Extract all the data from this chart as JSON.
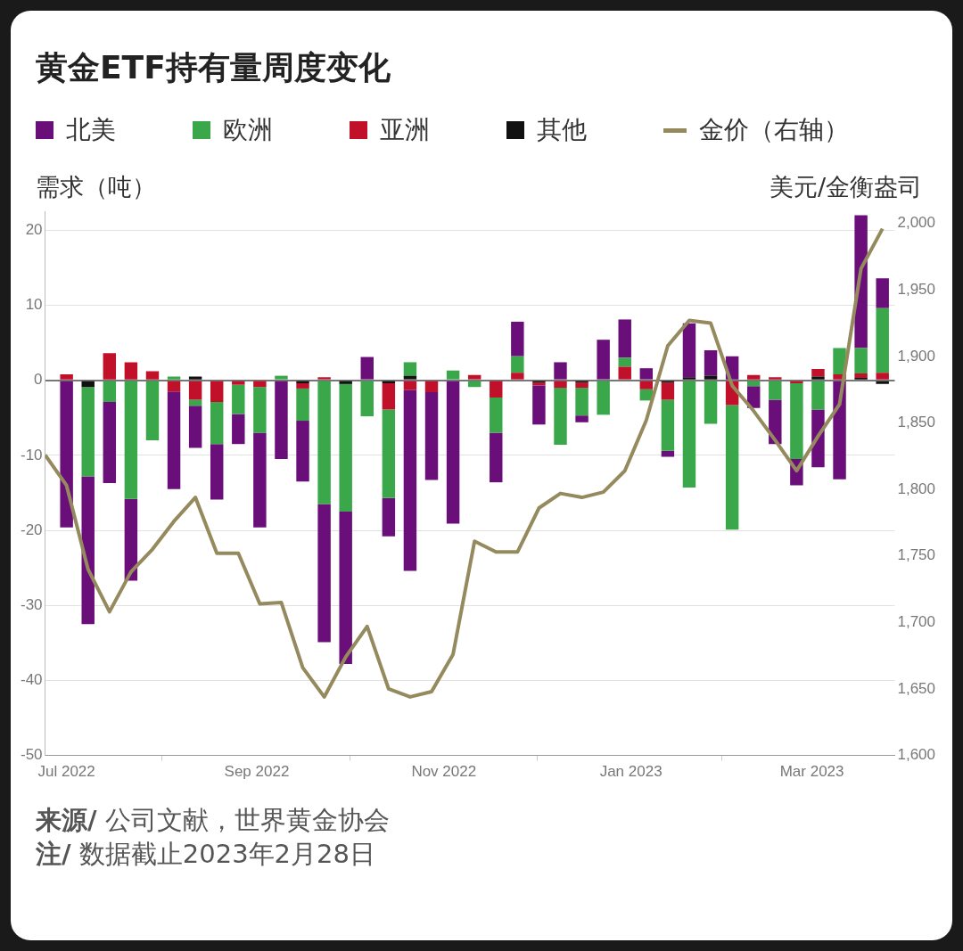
{
  "chart_data": {
    "type": "bar",
    "title": "黄金ETF持有量周度变化",
    "ylabel": "需求（吨）",
    "y2label": "美元/金衡盎司",
    "stacked": true,
    "grid": "y",
    "legend": "top",
    "x": [
      "2022-07-01",
      "2022-07-08",
      "2022-07-15",
      "2022-07-22",
      "2022-07-29",
      "2022-08-05",
      "2022-08-12",
      "2022-08-19",
      "2022-08-26",
      "2022-09-02",
      "2022-09-09",
      "2022-09-16",
      "2022-09-23",
      "2022-09-30",
      "2022-10-07",
      "2022-10-14",
      "2022-10-21",
      "2022-10-28",
      "2022-11-04",
      "2022-11-11",
      "2022-11-18",
      "2022-11-25",
      "2022-12-02",
      "2022-12-09",
      "2022-12-16",
      "2022-12-23",
      "2022-12-30",
      "2023-01-06",
      "2023-01-13",
      "2023-01-20",
      "2023-01-27",
      "2023-02-03",
      "2023-02-10",
      "2023-02-17",
      "2023-02-24",
      "2023-03-03",
      "2023-03-10",
      "2023-03-17",
      "2023-03-24"
    ],
    "xlim": [
      "2022-06-24",
      "2023-03-28"
    ],
    "xticks": [
      {
        "value": "2022-07-01",
        "label": "Jul 2022"
      },
      {
        "value": "2022-09-01",
        "label": "Sep 2022"
      },
      {
        "value": "2022-11-01",
        "label": "Nov 2022"
      },
      {
        "value": "2023-01-01",
        "label": "Jan 2023"
      },
      {
        "value": "2023-03-01",
        "label": "Mar 2023"
      }
    ],
    "ylim": [
      -50,
      22.5
    ],
    "yticks": [
      -50,
      -40,
      -30,
      -20,
      -10,
      0,
      10,
      20
    ],
    "y2lim": [
      1600,
      2009
    ],
    "y2ticks": [
      {
        "value": 1600,
        "label": "1,600"
      },
      {
        "value": 1650,
        "label": "1,650"
      },
      {
        "value": 1700,
        "label": "1,700"
      },
      {
        "value": 1750,
        "label": "1,750"
      },
      {
        "value": 1800,
        "label": "1,800"
      },
      {
        "value": 1850,
        "label": "1,850"
      },
      {
        "value": 1900,
        "label": "1,900"
      },
      {
        "value": 1950,
        "label": "1,950"
      },
      {
        "value": 2000,
        "label": "2,000"
      }
    ],
    "series": [
      {
        "name": "其他",
        "color": "#111111",
        "values": [
          0,
          -0.9,
          0,
          0,
          0,
          0,
          0.5,
          0,
          null,
          0,
          0,
          -0.4,
          0,
          -0.5,
          0,
          -0.4,
          0.6,
          0,
          0,
          0,
          0,
          0,
          -0.3,
          0,
          -0.3,
          0,
          null,
          0,
          -0.3,
          0.4,
          0.6,
          0,
          0,
          0,
          0,
          0.5,
          0,
          0.3,
          -0.5
        ]
      },
      {
        "name": "亚洲",
        "color": "#c0102a",
        "values": [
          0.8,
          0,
          3.6,
          2.4,
          1.2,
          -1.5,
          -2.6,
          -2.9,
          -0.6,
          -0.9,
          0,
          -0.7,
          0.4,
          0,
          0,
          -3.5,
          -1.3,
          -1.6,
          0,
          0.7,
          -2.3,
          1,
          -0.4,
          -1,
          -0.7,
          0,
          1.8,
          -1.2,
          -2.3,
          0,
          0,
          -3.3,
          0.7,
          0.4,
          -0.4,
          1,
          0.8,
          0.6,
          1
        ]
      },
      {
        "name": "欧洲",
        "color": "#3aa84a",
        "values": [
          0,
          -11.9,
          -2.9,
          -15.8,
          -8,
          0.5,
          -0.8,
          -5.6,
          -3.9,
          -6.1,
          0.6,
          -4.3,
          -16.5,
          -17,
          -4.8,
          -11.8,
          1.8,
          0,
          1.3,
          -0.9,
          -4.7,
          2.2,
          0,
          -7.6,
          -3.7,
          -4.6,
          1.2,
          -1.5,
          -6.8,
          -14.3,
          -5.8,
          -16.6,
          -0.8,
          -2.6,
          -10.1,
          -3.9,
          3.5,
          3.4,
          8.6
        ]
      },
      {
        "name": "北美",
        "color": "#6a0f7a",
        "values": [
          -19.6,
          -19.7,
          -10.8,
          -10.9,
          0,
          -13,
          -5.6,
          -7.4,
          -4,
          -12.6,
          -10.5,
          -8.1,
          -18.4,
          -20.3,
          3.1,
          -5.1,
          -24.1,
          -11.7,
          -19.1,
          0,
          -6.6,
          4.6,
          -5.2,
          2.4,
          -0.9,
          5.4,
          5.1,
          1.6,
          -0.8,
          7.2,
          3.4,
          3.2,
          -2.9,
          -5.9,
          -3.5,
          -7.7,
          -13.2,
          17.7,
          4
        ]
      },
      {
        "name": "金价（右轴）",
        "type": "line",
        "axis": "y2",
        "color": "#958a5e",
        "x": [
          "2022-06-24",
          "2022-07-01",
          "2022-07-08",
          "2022-07-15",
          "2022-07-22",
          "2022-07-29",
          "2022-08-05",
          "2022-08-12",
          "2022-08-19",
          "2022-08-26",
          "2022-09-02",
          "2022-09-09",
          "2022-09-16",
          "2022-09-23",
          "2022-09-30",
          "2022-10-07",
          "2022-10-14",
          "2022-10-21",
          "2022-10-28",
          "2022-11-04",
          "2022-11-11",
          "2022-11-18",
          "2022-11-25",
          "2022-12-02",
          "2022-12-09",
          "2022-12-16",
          "2022-12-23",
          "2022-12-30",
          "2023-01-06",
          "2023-01-13",
          "2023-01-20",
          "2023-01-27",
          "2023-02-03",
          "2023-02-10",
          "2023-02-17",
          "2023-02-24",
          "2023-03-03",
          "2023-03-10",
          "2023-03-17",
          "2023-03-24"
        ],
        "values": [
          1826,
          1803,
          1740,
          1708,
          1738,
          1755,
          1776,
          1794,
          1752,
          1752,
          1714,
          1715,
          1666,
          1644,
          1674,
          1697,
          1650,
          1644,
          1648,
          1676,
          1761,
          1753,
          1753,
          1786,
          1797,
          1794,
          1798,
          1814,
          1852,
          1908,
          1927,
          1925,
          1878,
          1859,
          1837,
          1814,
          1840,
          1864,
          1966,
          1996
        ]
      }
    ],
    "annotations": [
      "来源/ 公司文献，世界黄金协会",
      "注/ 数据截止2023年2月28日"
    ]
  }
}
